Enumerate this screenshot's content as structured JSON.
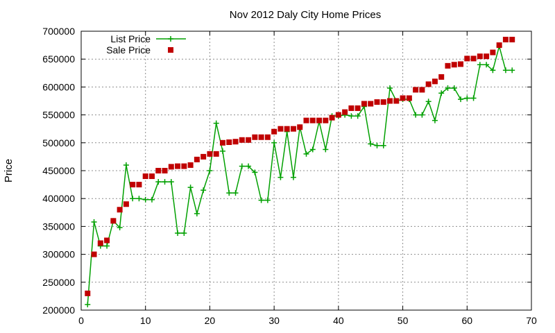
{
  "chart_data": {
    "type": "line",
    "title": "Nov 2012 Daly City Home Prices",
    "xlabel": "",
    "ylabel": "Price",
    "xlim": [
      0,
      70
    ],
    "ylim": [
      200000,
      700000
    ],
    "x_ticks": [
      0,
      10,
      20,
      30,
      40,
      50,
      60,
      70
    ],
    "y_ticks": [
      200000,
      250000,
      300000,
      350000,
      400000,
      450000,
      500000,
      550000,
      600000,
      650000,
      700000
    ],
    "grid": true,
    "legend_position": "top-left",
    "x": [
      1,
      2,
      3,
      4,
      5,
      6,
      7,
      8,
      9,
      10,
      11,
      12,
      13,
      14,
      15,
      16,
      17,
      18,
      19,
      20,
      21,
      22,
      23,
      24,
      25,
      26,
      27,
      28,
      29,
      30,
      31,
      32,
      33,
      34,
      35,
      36,
      37,
      38,
      39,
      40,
      41,
      42,
      43,
      44,
      45,
      46,
      47,
      48,
      49,
      50,
      51,
      52,
      53,
      54,
      55,
      56,
      57,
      58,
      59,
      60,
      61,
      62,
      63,
      64,
      65,
      66,
      67
    ],
    "series": [
      {
        "name": "List Price",
        "style": "line+plus",
        "color": "#00a000",
        "values": [
          210000,
          358000,
          315000,
          315000,
          360000,
          348000,
          460000,
          400000,
          400000,
          398000,
          398000,
          430000,
          430000,
          430000,
          338000,
          338000,
          420000,
          373000,
          415000,
          450000,
          535000,
          485000,
          410000,
          410000,
          458000,
          458000,
          447000,
          397000,
          397000,
          500000,
          438000,
          520000,
          438000,
          528000,
          480000,
          488000,
          538000,
          488000,
          548000,
          548000,
          550000,
          548000,
          548000,
          565000,
          498000,
          495000,
          495000,
          598000,
          575000,
          578000,
          578000,
          550000,
          550000,
          574000,
          540000,
          589000,
          598000,
          598000,
          578000,
          580000,
          580000,
          640000,
          640000,
          630000,
          673000,
          630000,
          630000
        ]
      },
      {
        "name": "Sale Price",
        "style": "square-points",
        "color": "#c00000",
        "values": [
          230000,
          300000,
          320000,
          325000,
          360000,
          380000,
          390000,
          425000,
          425000,
          440000,
          440000,
          450000,
          450000,
          457000,
          458000,
          458000,
          460000,
          470000,
          475000,
          480000,
          480000,
          500000,
          501000,
          502000,
          505000,
          505000,
          510000,
          510000,
          510000,
          520000,
          525000,
          525000,
          525000,
          528000,
          540000,
          540000,
          540000,
          540000,
          545000,
          550000,
          555000,
          562000,
          562000,
          570000,
          570000,
          573000,
          573000,
          575000,
          575000,
          580000,
          580000,
          595000,
          595000,
          605000,
          610000,
          618000,
          638000,
          640000,
          641000,
          651000,
          651000,
          655000,
          655000,
          662000,
          675000,
          685000,
          685000
        ]
      }
    ]
  }
}
